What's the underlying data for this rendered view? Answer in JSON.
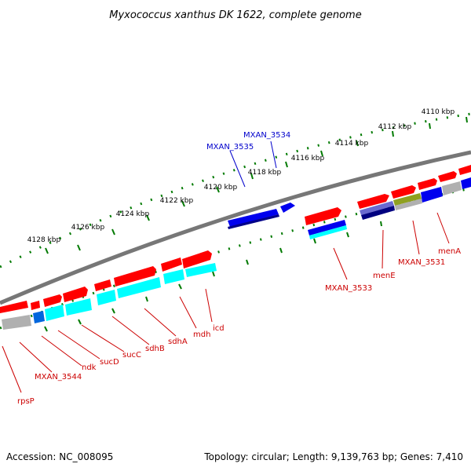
{
  "title": "Myxococcus xanthus DK 1622, complete genome",
  "footer": {
    "accession": "Accession: NC_008095",
    "summary": "Topology: circular; Length: 9,139,763 bp; Genes: 7,410"
  },
  "scale_labels": [
    "4110 kbp",
    "4112 kbp",
    "4114 kbp",
    "4116 kbp",
    "4118 kbp",
    "4120 kbp",
    "4122 kbp",
    "4124 kbp",
    "4126 kbp",
    "4128 kbp"
  ],
  "gene_labels_red": [
    "menA",
    "MXAN_3531",
    "menE",
    "MXAN_3533",
    "icd",
    "mdh",
    "sdhA",
    "sdhB",
    "sucC",
    "sucD",
    "ndk",
    "MXAN_3544",
    "rpsP"
  ],
  "gene_labels_blue": [
    "MXAN_3534",
    "MXAN_3535"
  ],
  "colors": {
    "forward_cds": "#ff0000",
    "reverse_cds": "#0000ff",
    "rna_cyan": "#00ffff",
    "gray_feature": "#b0b0b0",
    "olive_feature": "#8fa020",
    "navy_feature": "#000080",
    "backbone": "#777777",
    "tick": "#007a00",
    "label_red": "#cc0000",
    "label_blue": "#0000cc"
  }
}
